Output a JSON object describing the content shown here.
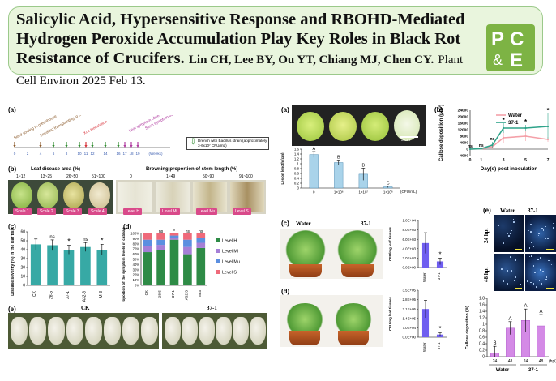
{
  "header": {
    "title": "Salicylic Acid, Hypersensitive Response and RBOHD-Mediated Hydrogen Peroxide Accumulation Play Key Roles in Black Rot Resistance of Crucifers.",
    "authors": "Lin CH, Lee BY, Ou YT, Chiang MJ, Chen CY.",
    "journal": "Plant Cell Environ 2025 Feb 13.",
    "logo_text": "PCE"
  },
  "left": {
    "a_label": "(a)",
    "a_steps": [
      "Seed sowing in greenhouse",
      "Seedling transplanting to the field after dipping with Bacillus suspension",
      "Xcc inoculation",
      "Leaf symptom observation (C)",
      "Stem symptom observation (D and E)"
    ],
    "a_ticks": [
      "0",
      "2",
      "4",
      "6",
      "8",
      "10",
      "11",
      "12",
      "14",
      "16",
      "17",
      "18",
      "19",
      "(Weeks)"
    ],
    "a_legend": "Drench with Bacillus strain (approximately 3-6x10⁷ CFU/mL)",
    "b_label": "(b)",
    "b_leaf_title": "Leaf disease area (%)",
    "b_leaf_ranges": [
      "1~12",
      "13~25",
      "26~50",
      "51~100"
    ],
    "b_leaf_scales": [
      "Scale 1",
      "Scale 2",
      "Scale 3",
      "Scale 4"
    ],
    "b_stem_title": "Browning proportion of stem length (%)",
    "b_stem_ranges": [
      "0",
      "1~49",
      "50~90",
      "91~100"
    ],
    "b_stem_levels": [
      "Level H",
      "Level Mi",
      "Level Mu",
      "Level S"
    ],
    "c_label": "(c)",
    "d_label": "(d)",
    "e_label": "(e)",
    "e_groups": [
      "CK",
      "37-1"
    ]
  },
  "chart_c": {
    "type": "bar",
    "ylabel": "Disease severity (%) in the leaf tissues",
    "categories": [
      "CK",
      "28-5",
      "37-1",
      "A32-3",
      "M-3"
    ],
    "values": [
      46,
      45,
      40,
      43,
      40
    ],
    "errors": [
      6,
      6,
      5,
      5,
      6
    ],
    "marks": [
      "",
      "ns",
      "*",
      "ns",
      "*"
    ],
    "ylim": [
      0,
      60
    ],
    "yticks": [
      "0",
      "10",
      "20",
      "30",
      "40",
      "50",
      "60"
    ]
  },
  "chart_d": {
    "type": "bar",
    "ylabel": "Proportion of the symptom levels in cabbage stems",
    "categories": [
      "CK",
      "28-5",
      "37-1",
      "A32-3",
      "M-3"
    ],
    "marks": [
      "",
      "ns",
      "*",
      "ns",
      "ns"
    ],
    "series": [
      {
        "name": "Level H",
        "color": "#2e8b46",
        "values": [
          64,
          68,
          88,
          60,
          72
        ]
      },
      {
        "name": "Level Mi",
        "color": "#a57fd6",
        "values": [
          12,
          10,
          4,
          14,
          10
        ]
      },
      {
        "name": "Level Mu",
        "color": "#5b8fe0",
        "values": [
          12,
          10,
          4,
          14,
          9
        ]
      },
      {
        "name": "Level S",
        "color": "#ef6a7a",
        "values": [
          12,
          12,
          4,
          12,
          9
        ]
      }
    ],
    "yticks": [
      "0%",
      "10%",
      "20%",
      "30%",
      "40%",
      "50%",
      "60%",
      "70%",
      "80%",
      "90%",
      "100%"
    ]
  },
  "middle": {
    "a_label": "(a)",
    "a_scalebar": "5 cm",
    "c_label": "(c)",
    "d_label": "(d)",
    "water": "Water",
    "strain": "37-1"
  },
  "chart_lesion": {
    "type": "bar",
    "ylabel": "Lesion length (cm)",
    "categories": [
      "0",
      "1×10⁶",
      "1×10⁷",
      "1×10⁸"
    ],
    "unit": "(CFU/mL)",
    "values": [
      1.38,
      1.05,
      0.57,
      0.05
    ],
    "errors": [
      0.12,
      0.1,
      0.25,
      0.03
    ],
    "letters": [
      "A",
      "B",
      "B",
      "C"
    ],
    "ylim": [
      0,
      1.6
    ],
    "yticks": [
      "0",
      "0.2",
      "0.4",
      "0.6",
      "0.8",
      "1",
      "1.2",
      "1.4",
      "1.6"
    ]
  },
  "chart_cfu_c": {
    "type": "bar",
    "ylabel": "CFU/mg leaf tissues",
    "categories": [
      "Water",
      "37-1"
    ],
    "values": [
      5200,
      1300
    ],
    "errors": [
      2200,
      700
    ],
    "marks": [
      "",
      "*"
    ],
    "ylim": [
      0,
      10000
    ],
    "yticks": [
      "0.0E+00",
      "2.0E+03",
      "4.0E+03",
      "6.0E+03",
      "8.0E+03",
      "1.0E+04"
    ]
  },
  "chart_cfu_d": {
    "type": "bar",
    "ylabel": "CFU/mg leaf tissues",
    "categories": [
      "Water",
      "37-1"
    ],
    "values": [
      210000,
      20000
    ],
    "errors": [
      65000,
      15000
    ],
    "marks": [
      "",
      "*"
    ],
    "ylim": [
      0,
      350000
    ],
    "yticks": [
      "0.0E+00",
      "7.0E+04",
      "1.4E+05",
      "2.1E+05",
      "2.8E+05",
      "3.5E+05"
    ]
  },
  "right": {
    "b_label": "(b)",
    "e_label": "(e)",
    "e_cols": [
      "Water",
      "37-1"
    ],
    "e_rows": [
      "24 hpi",
      "48 hpi"
    ]
  },
  "chart_callose_line": {
    "type": "line",
    "ylabel": "Callose deposition (μm²)",
    "xlabel": "Day(s) post inoculation",
    "x": [
      0,
      1,
      2,
      3,
      5,
      7
    ],
    "series": [
      {
        "name": "Water",
        "color": "#f4a0a8",
        "values": [
          0,
          200,
          1500,
          7000,
          8000,
          6000
        ],
        "errors": [
          100,
          300,
          1500,
          3000,
          3000,
          1500
        ]
      },
      {
        "name": "37-1",
        "color": "#2ea38a",
        "values": [
          0,
          300,
          2500,
          13000,
          13000,
          14000
        ],
        "errors": [
          100,
          300,
          2000,
          3000,
          2000,
          8000
        ]
      }
    ],
    "marks": [
      "ns",
      "ns",
      "ns",
      "*",
      "*",
      "*"
    ],
    "ylim": [
      -4000,
      24000
    ],
    "yticks": [
      "-4000",
      "0",
      "4000",
      "8000",
      "12000",
      "16000",
      "20000",
      "24000"
    ],
    "xticks": [
      "0",
      "1",
      "3",
      "5",
      "7"
    ]
  },
  "chart_callose_bar": {
    "type": "bar",
    "ylabel": "Callose deposition (%)",
    "categories": [
      "24",
      "48",
      "24",
      "48"
    ],
    "groups": [
      "Water",
      "37-1"
    ],
    "unit": "(hpi)",
    "values": [
      0.12,
      0.88,
      1.12,
      0.95
    ],
    "errors": [
      0.2,
      0.2,
      0.35,
      0.35
    ],
    "letters": [
      "B",
      "A",
      "A",
      "A"
    ],
    "ylim": [
      0,
      1.8
    ],
    "yticks": [
      "0",
      "0.2",
      "0.4",
      "0.6",
      "0.8",
      "1",
      "1.2",
      "1.4",
      "1.6",
      "1.8"
    ]
  }
}
